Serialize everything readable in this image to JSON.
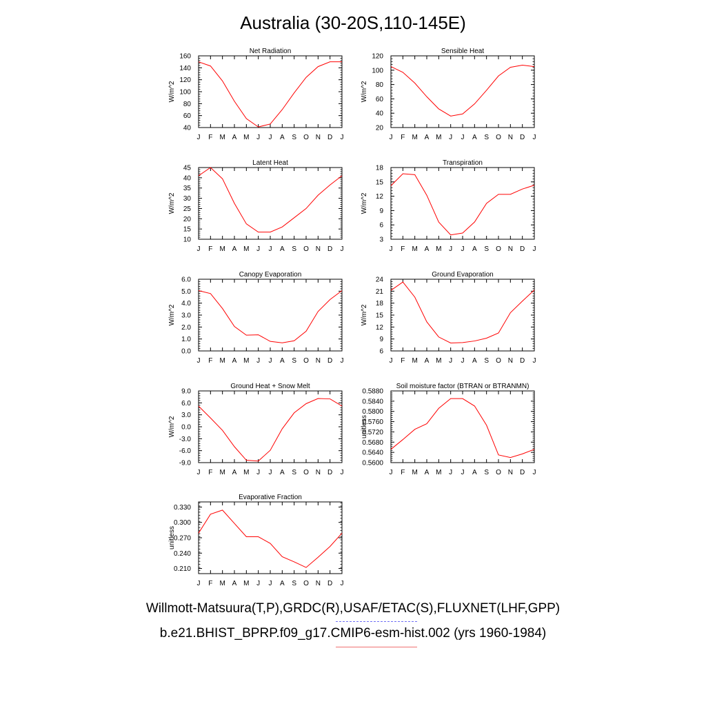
{
  "page": {
    "title": "Australia (30-20S,110-145E)"
  },
  "legend": {
    "obs_label": "Willmott-Matsuura(T,P),GRDC(R),USAF/ETAC(S),FLUXNET(LHF,GPP)",
    "model_label": "b.e21.BHIST_BPRP.f09_g17.CMIP6-esm-hist.002 (yrs 1960-1984)",
    "obs_color": "#6e6ef5",
    "model_color": "#ff0000"
  },
  "chart_data": [
    {
      "type": "line",
      "title": "Net Radiation",
      "ylabel": "W/m^2",
      "ylim": [
        40,
        160
      ],
      "yticks": [
        40,
        60,
        80,
        100,
        120,
        140,
        160
      ],
      "ytick_labels": [
        "40",
        "60",
        "80",
        "100",
        "120",
        "140",
        "160"
      ],
      "categories": [
        "J",
        "F",
        "M",
        "A",
        "M",
        "J",
        "J",
        "A",
        "S",
        "O",
        "N",
        "D",
        "J"
      ],
      "series": [
        {
          "color": "#ff0000",
          "values": [
            150,
            143,
            118,
            84,
            55,
            41,
            46,
            70,
            98,
            124,
            142,
            150,
            150
          ]
        }
      ]
    },
    {
      "type": "line",
      "title": "Sensible Heat",
      "ylabel": "W/m^2",
      "ylim": [
        20,
        120
      ],
      "yticks": [
        20,
        40,
        60,
        80,
        100,
        120
      ],
      "ytick_labels": [
        "20",
        "40",
        "60",
        "80",
        "100",
        "120"
      ],
      "categories": [
        "J",
        "F",
        "M",
        "A",
        "M",
        "J",
        "J",
        "A",
        "S",
        "O",
        "N",
        "D",
        "J"
      ],
      "series": [
        {
          "color": "#ff0000",
          "values": [
            105,
            97,
            82,
            63,
            46,
            36,
            39,
            53,
            72,
            92,
            104,
            107,
            105
          ]
        }
      ]
    },
    {
      "type": "line",
      "title": "Latent Heat",
      "ylabel": "W/m^2",
      "ylim": [
        10,
        45
      ],
      "yticks": [
        10,
        15,
        20,
        25,
        30,
        35,
        40,
        45
      ],
      "ytick_labels": [
        "10",
        "15",
        "20",
        "25",
        "30",
        "35",
        "40",
        "45"
      ],
      "categories": [
        "J",
        "F",
        "M",
        "A",
        "M",
        "J",
        "J",
        "A",
        "S",
        "O",
        "N",
        "D",
        "J"
      ],
      "series": [
        {
          "color": "#ff0000",
          "values": [
            41,
            45,
            39.5,
            27.5,
            17.5,
            13.5,
            13.5,
            16,
            20.5,
            25,
            31.5,
            36.5,
            41
          ]
        }
      ]
    },
    {
      "type": "line",
      "title": "Transpiration",
      "ylabel": "W/m^2",
      "ylim": [
        3,
        18
      ],
      "yticks": [
        3,
        6,
        9,
        12,
        15,
        18
      ],
      "ytick_labels": [
        "3",
        "6",
        "9",
        "12",
        "15",
        "18"
      ],
      "categories": [
        "J",
        "F",
        "M",
        "A",
        "M",
        "J",
        "J",
        "A",
        "S",
        "O",
        "N",
        "D",
        "J"
      ],
      "series": [
        {
          "color": "#ff0000",
          "values": [
            14.2,
            16.7,
            16.5,
            12.2,
            6.6,
            3.9,
            4.3,
            6.6,
            10.5,
            12.4,
            12.4,
            13.5,
            14.3
          ]
        }
      ]
    },
    {
      "type": "line",
      "title": "Canopy Evaporation",
      "ylabel": "W/m^2",
      "ylim": [
        0,
        6
      ],
      "yticks": [
        0,
        1,
        2,
        3,
        4,
        5,
        6
      ],
      "ytick_labels": [
        "0.0",
        "1.0",
        "2.0",
        "3.0",
        "4.0",
        "5.0",
        "6.0"
      ],
      "categories": [
        "J",
        "F",
        "M",
        "A",
        "M",
        "J",
        "J",
        "A",
        "S",
        "O",
        "N",
        "D",
        "J"
      ],
      "series": [
        {
          "color": "#ff0000",
          "values": [
            5.05,
            4.8,
            3.55,
            2.05,
            1.32,
            1.35,
            0.8,
            0.68,
            0.85,
            1.65,
            3.3,
            4.3,
            5.05
          ]
        }
      ]
    },
    {
      "type": "line",
      "title": "Ground Evaporation",
      "ylabel": "W/m^2",
      "ylim": [
        6,
        24
      ],
      "yticks": [
        6,
        9,
        12,
        15,
        18,
        21,
        24
      ],
      "ytick_labels": [
        "6",
        "9",
        "12",
        "15",
        "18",
        "21",
        "24"
      ],
      "categories": [
        "J",
        "F",
        "M",
        "A",
        "M",
        "J",
        "J",
        "A",
        "S",
        "O",
        "N",
        "D",
        "J"
      ],
      "series": [
        {
          "color": "#ff0000",
          "values": [
            21.2,
            23.3,
            19.5,
            13.3,
            9.5,
            8.0,
            8.1,
            8.5,
            9.2,
            10.5,
            15.6,
            18.5,
            21.3
          ]
        }
      ]
    },
    {
      "type": "line",
      "title": "Ground Heat + Snow Melt",
      "ylabel": "W/m^2",
      "ylim": [
        -9,
        9
      ],
      "yticks": [
        -9,
        -6,
        -3,
        0,
        3,
        6,
        9
      ],
      "ytick_labels": [
        "-9.0",
        "-6.0",
        "-3.0",
        "0.0",
        "3.0",
        "6.0",
        "9.0"
      ],
      "categories": [
        "J",
        "F",
        "M",
        "A",
        "M",
        "J",
        "J",
        "A",
        "S",
        "O",
        "N",
        "D",
        "J"
      ],
      "series": [
        {
          "color": "#ff0000",
          "values": [
            5.2,
            2.2,
            -0.9,
            -5.0,
            -8.4,
            -8.6,
            -5.9,
            -0.5,
            3.5,
            5.8,
            7.1,
            7.0,
            5.2
          ]
        }
      ]
    },
    {
      "type": "line",
      "title": "Soil moisture factor (BTRAN or BTRANMN)",
      "ylabel": "unitless",
      "ylim": [
        0.56,
        0.588
      ],
      "yticks": [
        0.56,
        0.564,
        0.568,
        0.572,
        0.576,
        0.58,
        0.584,
        0.588
      ],
      "ytick_labels": [
        "0.5600",
        "0.5640",
        "0.5680",
        "0.5720",
        "0.5760",
        "0.5800",
        "0.5840",
        "0.5880"
      ],
      "categories": [
        "J",
        "F",
        "M",
        "A",
        "M",
        "J",
        "J",
        "A",
        "S",
        "O",
        "N",
        "D",
        "J"
      ],
      "series": [
        {
          "color": "#ff0000",
          "values": [
            0.5652,
            0.569,
            0.573,
            0.5752,
            0.5812,
            0.585,
            0.585,
            0.5821,
            0.5746,
            0.563,
            0.562,
            0.5634,
            0.5652
          ]
        }
      ]
    },
    {
      "type": "line",
      "title": "Evaporative Fraction",
      "ylabel": "unitless",
      "ylim": [
        0.2,
        0.34
      ],
      "yticks": [
        0.21,
        0.24,
        0.27,
        0.3,
        0.33
      ],
      "ytick_labels": [
        "0.210",
        "0.240",
        "0.270",
        "0.300",
        "0.330"
      ],
      "categories": [
        "J",
        "F",
        "M",
        "A",
        "M",
        "J",
        "J",
        "A",
        "S",
        "O",
        "N",
        "D",
        "J"
      ],
      "series": [
        {
          "color": "#ff0000",
          "values": [
            0.279,
            0.316,
            0.324,
            0.298,
            0.272,
            0.272,
            0.259,
            0.233,
            0.223,
            0.212,
            0.232,
            0.253,
            0.279
          ]
        }
      ]
    }
  ]
}
